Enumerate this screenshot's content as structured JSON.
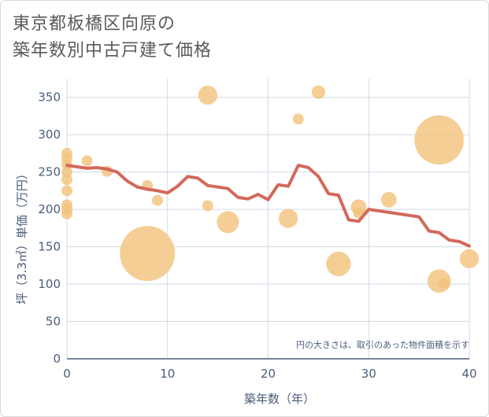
{
  "title_lines": [
    "東京都板橋区向原の",
    "築年数別中古戸建て価格"
  ],
  "chart_data": {
    "type": "scatter",
    "xlabel": "築年数（年）",
    "ylabel": "坪（3.3㎡）単価（万円）",
    "xlim": [
      0,
      40
    ],
    "ylim": [
      0,
      375
    ],
    "xticks": [
      0,
      10,
      20,
      30,
      40
    ],
    "yticks": [
      0,
      50,
      100,
      150,
      200,
      250,
      300,
      350
    ],
    "grid": true,
    "note": "円の大きさは、取引のあった物件面積を示す",
    "colors": {
      "bubble": "#f3c27a",
      "line": "#d2695a",
      "grid": "#cfdbe6",
      "axis": "#4a5d7a"
    },
    "bubbles": [
      {
        "x": 0,
        "y": 275,
        "size": 1
      },
      {
        "x": 0,
        "y": 268,
        "size": 1
      },
      {
        "x": 0,
        "y": 260,
        "size": 1
      },
      {
        "x": 0,
        "y": 250,
        "size": 1
      },
      {
        "x": 0,
        "y": 240,
        "size": 1
      },
      {
        "x": 0,
        "y": 225,
        "size": 1
      },
      {
        "x": 0,
        "y": 206,
        "size": 1
      },
      {
        "x": 0,
        "y": 200,
        "size": 1
      },
      {
        "x": 0,
        "y": 194,
        "size": 1
      },
      {
        "x": 2,
        "y": 265,
        "size": 1
      },
      {
        "x": 4,
        "y": 251,
        "size": 1
      },
      {
        "x": 8,
        "y": 232,
        "size": 1
      },
      {
        "x": 8,
        "y": 141,
        "size": 25
      },
      {
        "x": 9,
        "y": 212,
        "size": 1
      },
      {
        "x": 14,
        "y": 353,
        "size": 3
      },
      {
        "x": 14,
        "y": 205,
        "size": 1
      },
      {
        "x": 16,
        "y": 183,
        "size": 4
      },
      {
        "x": 22,
        "y": 188,
        "size": 3
      },
      {
        "x": 23,
        "y": 321,
        "size": 1
      },
      {
        "x": 25,
        "y": 357,
        "size": 1.5
      },
      {
        "x": 27,
        "y": 127,
        "size": 5
      },
      {
        "x": 29,
        "y": 203,
        "size": 2
      },
      {
        "x": 29,
        "y": 195,
        "size": 1
      },
      {
        "x": 32,
        "y": 213,
        "size": 2
      },
      {
        "x": 37,
        "y": 293,
        "size": 20
      },
      {
        "x": 37,
        "y": 104,
        "size": 4.5
      },
      {
        "x": 37.5,
        "y": 101,
        "size": 1
      },
      {
        "x": 40,
        "y": 134,
        "size": 3
      }
    ],
    "line": {
      "x": [
        0,
        1,
        2,
        3,
        4,
        5,
        6,
        7,
        8,
        9,
        10,
        11,
        12,
        13,
        14,
        15,
        16,
        17,
        18,
        19,
        20,
        21,
        22,
        23,
        24,
        25,
        26,
        27,
        28,
        29,
        30,
        31,
        32,
        33,
        34,
        35,
        36,
        37,
        38,
        39,
        40
      ],
      "y": [
        259,
        257,
        255,
        256,
        254,
        250,
        238,
        230,
        227,
        225,
        222,
        231,
        244,
        242,
        232,
        230,
        228,
        216,
        214,
        220,
        213,
        233,
        231,
        259,
        256,
        244,
        221,
        219,
        186,
        184,
        200,
        198,
        196,
        194,
        192,
        190,
        171,
        169,
        159,
        157,
        151
      ]
    }
  }
}
